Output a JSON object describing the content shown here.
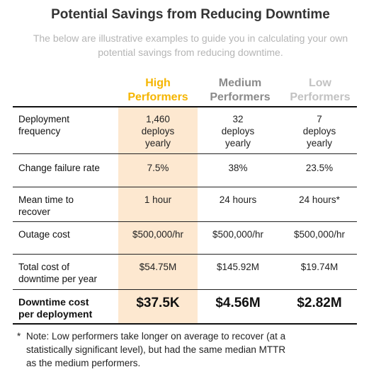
{
  "title": "Potential Savings from Reducing Downtime",
  "subtitle": "The below are illustrative examples to guide you in calculating your own potential savings from reducing downtime.",
  "columns": {
    "high": [
      "High",
      "Performers"
    ],
    "medium": [
      "Medium",
      "Performers"
    ],
    "low": [
      "Low",
      "Performers"
    ]
  },
  "colors": {
    "high": "#f5b500",
    "medium": "#8a8a8a",
    "low": "#c2c2c2",
    "high_bg": "#fde8d0"
  },
  "rows": [
    {
      "label": [
        "Deployment",
        "frequency"
      ],
      "high": [
        "1,460",
        "deploys",
        "yearly"
      ],
      "medium": [
        "32",
        "deploys",
        "yearly"
      ],
      "low": [
        "7",
        "deploys",
        "yearly"
      ]
    },
    {
      "label": [
        "Change failure rate"
      ],
      "high": [
        "7.5%"
      ],
      "medium": [
        "38%"
      ],
      "low": [
        "23.5%"
      ]
    },
    {
      "label": [
        "Mean time to",
        "recover"
      ],
      "high": [
        "1 hour"
      ],
      "medium": [
        "24 hours"
      ],
      "low": [
        "24 hours*"
      ]
    },
    {
      "label": [
        "Outage cost"
      ],
      "high": [
        "$500,000/hr"
      ],
      "medium": [
        "$500,000/hr"
      ],
      "low": [
        "$500,000/hr"
      ]
    },
    {
      "label": [
        "Total cost of",
        "downtime per year"
      ],
      "high": [
        "$54.75M"
      ],
      "medium": [
        "$145.92M"
      ],
      "low": [
        "$19.74M"
      ]
    },
    {
      "label": [
        "Downtime cost",
        "per deployment"
      ],
      "high": [
        "$37.5K"
      ],
      "medium": [
        "$4.56M"
      ],
      "low": [
        "$2.82M"
      ]
    }
  ],
  "note": {
    "mark": "*",
    "lines": [
      "Note: Low performers take longer on average to recover (at a",
      "statistically significant level), but had the same median MTTR",
      "as the medium performers."
    ]
  }
}
